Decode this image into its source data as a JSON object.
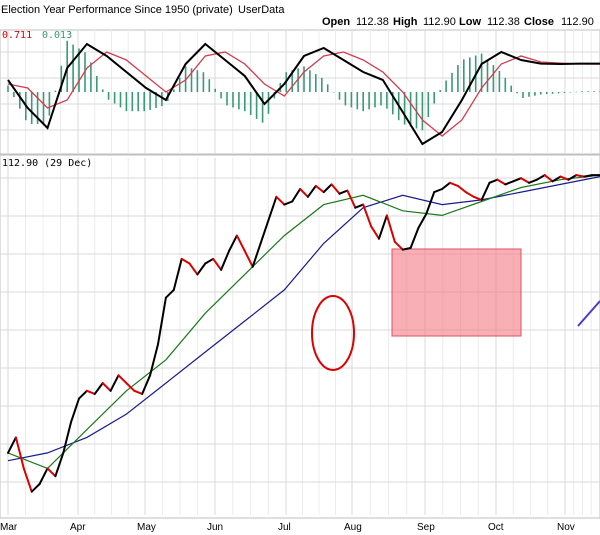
{
  "header": {
    "title": "Election Year Performance Since 1950 (private)",
    "source": "UserData",
    "open_label": "Open",
    "open_value": "112.38",
    "high_label": "High",
    "high_value": "112.90",
    "low_label": "Low",
    "low_value": "112.38",
    "close_label": "Close",
    "close_value": "112.90"
  },
  "indicator_panel": {
    "readout_line": "0.711",
    "readout_signal": "0.013"
  },
  "price_panel": {
    "label": "112.90 (29 Dec)"
  },
  "colors": {
    "up": "#000000",
    "down": "#dd0000",
    "ma_short": "#1a7a1a",
    "ma_long": "#1a1a8c",
    "macd_signal": "#d23c50",
    "histogram": "#3a9a78",
    "highlight_box": "#f47a86",
    "circle": "#dd0000",
    "trendline": "#4a3ad0",
    "grid": "#d9d9d9"
  },
  "chart_data": [
    {
      "type": "line",
      "panel": "price",
      "x_months": [
        "Mar",
        "Apr",
        "May",
        "Jun",
        "Jul",
        "Aug",
        "Sep",
        "Oct",
        "Nov"
      ],
      "x_day_range": [
        0,
        300
      ],
      "ylim": [
        91,
        114
      ],
      "grid": true,
      "series": [
        {
          "role": "price",
          "x": [
            0,
            4,
            8,
            12,
            16,
            20,
            24,
            28,
            32,
            36,
            40,
            44,
            48,
            52,
            56,
            60,
            64,
            68,
            72,
            76,
            80,
            84,
            88,
            92,
            96,
            100,
            104,
            108,
            112,
            116,
            120,
            124,
            128,
            132,
            136,
            140,
            144,
            148,
            152,
            156,
            160,
            164,
            168,
            172,
            176,
            180,
            184,
            188,
            192,
            196,
            200,
            204,
            208,
            212,
            216,
            220,
            224,
            228,
            232,
            236,
            240,
            244,
            248,
            252,
            256,
            260,
            264,
            268,
            272,
            276,
            280,
            284,
            288,
            292,
            296,
            300
          ],
          "y": [
            95,
            96,
            94,
            92.5,
            93,
            94,
            93.5,
            95,
            97,
            98.5,
            99,
            98.8,
            99.5,
            99,
            100,
            99.5,
            99,
            98.8,
            100,
            102,
            105,
            105.5,
            107.5,
            107.2,
            106.5,
            107.2,
            107.5,
            106.8,
            108,
            109,
            108,
            107,
            108.5,
            110,
            111.5,
            111,
            111.2,
            112,
            111.5,
            112.2,
            111.8,
            112.3,
            111.7,
            111.9,
            110.8,
            111,
            109.6,
            108.8,
            110.3,
            108.6,
            108.1,
            108.2,
            109.5,
            110.4,
            111.8,
            112,
            112.4,
            112.2,
            111.8,
            111.5,
            111.3,
            112.4,
            112.6,
            112.3,
            112.5,
            112.7,
            112.4,
            112.6,
            112.9,
            112.5,
            112.8,
            112.6,
            112.9,
            112.8,
            112.9,
            112.9
          ]
        },
        {
          "role": "ma_short",
          "x": [
            0,
            20,
            40,
            60,
            80,
            100,
            120,
            140,
            160,
            180,
            200,
            220,
            240,
            260,
            280,
            300
          ],
          "y": [
            95,
            94,
            96.5,
            99,
            101,
            104,
            106.5,
            109,
            111,
            111.6,
            110.6,
            110.3,
            111.2,
            112.1,
            112.6,
            112.9
          ]
        },
        {
          "role": "ma_long",
          "x": [
            0,
            20,
            40,
            60,
            80,
            100,
            120,
            140,
            160,
            180,
            200,
            220,
            240,
            260,
            280,
            300
          ],
          "y": [
            94.5,
            95,
            96,
            97.5,
            99.5,
            101.5,
            103.5,
            105.5,
            108.5,
            110.8,
            111.6,
            111,
            111.3,
            111.8,
            112.3,
            112.8
          ]
        }
      ]
    },
    {
      "type": "line",
      "panel": "macd",
      "x_day_range": [
        0,
        300
      ],
      "ylim": [
        -1.5,
        1.5
      ],
      "series": [
        {
          "role": "macd",
          "x": [
            0,
            10,
            20,
            30,
            40,
            50,
            60,
            70,
            80,
            90,
            100,
            110,
            120,
            130,
            140,
            150,
            160,
            170,
            180,
            190,
            200,
            210,
            220,
            230,
            240,
            250,
            260,
            270,
            280,
            290,
            300
          ],
          "y": [
            0.3,
            -0.4,
            -0.9,
            0.6,
            1.2,
            0.9,
            0.5,
            0.1,
            -0.2,
            0.7,
            1.2,
            0.8,
            0.4,
            -0.3,
            0.2,
            0.9,
            1.1,
            0.8,
            0.5,
            0.3,
            -0.5,
            -1.3,
            -1.0,
            -0.2,
            0.7,
            1.0,
            0.8,
            0.711,
            0.7,
            0.71,
            0.711
          ]
        },
        {
          "role": "signal",
          "x": [
            0,
            10,
            20,
            30,
            40,
            50,
            60,
            70,
            80,
            90,
            100,
            110,
            120,
            130,
            140,
            150,
            160,
            170,
            180,
            190,
            200,
            210,
            220,
            230,
            240,
            250,
            260,
            270,
            280,
            290,
            300
          ],
          "y": [
            0.2,
            0.1,
            -0.4,
            -0.2,
            0.6,
            1.0,
            0.8,
            0.4,
            0.0,
            0.3,
            0.9,
            1.0,
            0.7,
            0.2,
            -0.1,
            0.5,
            0.9,
            1.0,
            0.8,
            0.5,
            0.0,
            -0.7,
            -1.1,
            -0.7,
            0.1,
            0.7,
            0.9,
            0.75,
            0.72,
            0.7,
            0.698
          ]
        }
      ]
    }
  ]
}
